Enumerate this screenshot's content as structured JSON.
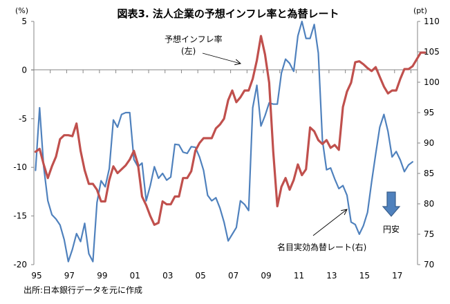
{
  "title": "図表3. 法人企業の予想インフレ率と為替レート",
  "left_unit": "(%)",
  "right_unit": "(pt)",
  "source": "出所:日本銀行データを元に作成",
  "annotations": {
    "inflation_label_line1": "予想インフレ率",
    "inflation_label_line2": "(左)",
    "fx_label": "名目実効為替レート(右)",
    "yen_weak": "円安"
  },
  "colors": {
    "inflation": "#C0504D",
    "fx": "#4F81BD",
    "axis": "#868686",
    "arrow_fill": "#4F81BD",
    "arrow_stroke": "#385D8A"
  },
  "chart_data": {
    "type": "line",
    "title": "図表3. 法人企業の予想インフレ率と為替レート",
    "xlabel": "",
    "x_tick_labels": [
      "95",
      "97",
      "99",
      "01",
      "03",
      "05",
      "07",
      "09",
      "11",
      "13",
      "15",
      "17"
    ],
    "x_range": [
      1995,
      2018.4
    ],
    "left_axis": {
      "label": "(%)",
      "ylim": [
        -20,
        5
      ],
      "ticks": [
        "5",
        "0",
        "-5",
        "-10",
        "-15",
        "-20"
      ]
    },
    "right_axis": {
      "label": "(pt)",
      "ylim": [
        70,
        110
      ],
      "ticks": [
        "110",
        "105",
        "100",
        "95",
        "90",
        "85",
        "80",
        "75",
        "70"
      ]
    },
    "series": [
      {
        "name": "予想インフレ率(左)",
        "axis": "left",
        "start": 1995.1,
        "step": 0.25,
        "values": [
          -8.4,
          -8.1,
          -9.7,
          -11.1,
          -9.9,
          -8.9,
          -7.1,
          -6.7,
          -6.7,
          -6.8,
          -5.5,
          -8.3,
          -10.3,
          -11.7,
          -11.7,
          -12.3,
          -13.5,
          -13.5,
          -11.3,
          -9.9,
          -10.6,
          -10.2,
          -9.8,
          -9.2,
          -8.3,
          -9.7,
          -13.0,
          -13.9,
          -15.0,
          -15.9,
          -15.7,
          -13.5,
          -13.8,
          -13.8,
          -13.0,
          -13.0,
          -11.1,
          -11.1,
          -10.4,
          -8.3,
          -7.5,
          -7.0,
          -7.0,
          -7.0,
          -6.0,
          -5.6,
          -5.0,
          -3.1,
          -2.1,
          -3.3,
          -2.8,
          -2.1,
          -2.1,
          -0.9,
          1.0,
          3.5,
          1.6,
          -1.3,
          -8.4,
          -14.0,
          -12.0,
          -11.1,
          -12.3,
          -11.3,
          -9.7,
          -10.8,
          -10.2,
          -5.9,
          -6.3,
          -7.2,
          -7.6,
          -7.2,
          -8.0,
          -7.7,
          -8.2,
          -3.8,
          -2.2,
          -1.3,
          0.8,
          0.9,
          0.6,
          0.2,
          -0.1,
          0.3,
          -0.7,
          -1.7,
          -2.4,
          -2.1,
          -2.1,
          -0.9,
          0.1,
          0.1,
          0.4,
          1.1,
          1.8,
          1.8
        ]
      },
      {
        "name": "名目実効為替レート(右)",
        "axis": "right",
        "start": 1995.1,
        "step": 0.25,
        "values": [
          85.5,
          95.8,
          86.1,
          80.5,
          78.2,
          77.5,
          76.5,
          74.1,
          70.5,
          72.5,
          75.1,
          73.8,
          76.8,
          71.8,
          70.5,
          80.2,
          83.8,
          82.8,
          85.8,
          93.8,
          92.6,
          94.7,
          95.0,
          95.0,
          87.3,
          86.1,
          86.7,
          80.5,
          83.0,
          86.1,
          84.2,
          85.0,
          83.9,
          84.4,
          89.8,
          89.7,
          88.5,
          88.3,
          89.4,
          89.3,
          87.7,
          85.5,
          81.4,
          80.5,
          81.0,
          79.3,
          77.0,
          73.9,
          75.0,
          76.1,
          80.5,
          79.9,
          78.9,
          95.8,
          99.5,
          92.8,
          94.5,
          96.6,
          96.4,
          96.4,
          101.5,
          103.8,
          103.1,
          101.8,
          107.6,
          110.0,
          107.2,
          107.2,
          109.5,
          104.8,
          90.5,
          85.6,
          85.9,
          84.1,
          82.5,
          83.0,
          81.4,
          77.0,
          76.6,
          75.0,
          76.4,
          78.6,
          83.6,
          88.2,
          92.6,
          94.7,
          91.9,
          87.7,
          88.6,
          87.2,
          85.3,
          86.4,
          86.9
        ]
      }
    ]
  }
}
